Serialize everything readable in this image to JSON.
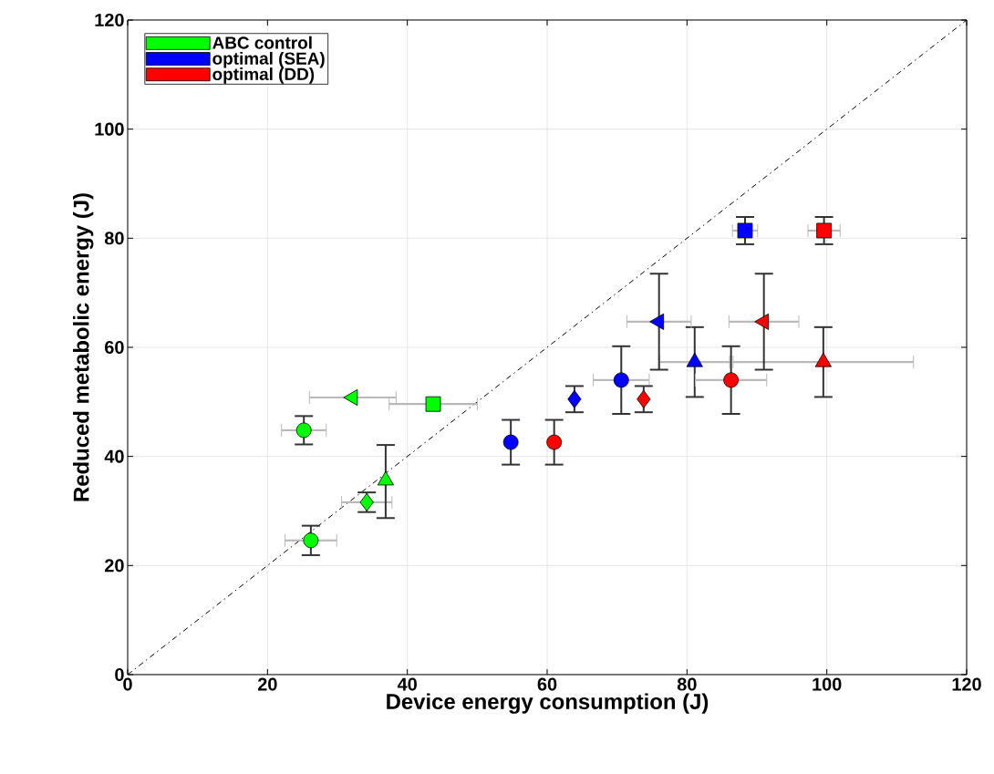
{
  "chart_data": {
    "type": "scatter",
    "xlabel": "Device energy consumption (J)",
    "ylabel": "Reduced metabolic energy (J)",
    "xlim": [
      0,
      120
    ],
    "ylim": [
      0,
      120
    ],
    "xticks": [
      0,
      20,
      40,
      60,
      80,
      100,
      120
    ],
    "yticks": [
      0,
      20,
      40,
      60,
      80,
      100,
      120
    ],
    "grid": true,
    "legend": "top left",
    "series": [
      {
        "name": "ABC control",
        "color": "#00ff00",
        "marker": "circle",
        "x": [
          26.2
        ],
        "values": [
          24.6
        ],
        "errors": [
          2.7
        ],
        "xerrors": [
          3.7
        ]
      },
      {
        "color": "#00ff00",
        "marker": "diamond",
        "x": [
          34.2
        ],
        "values": [
          31.6
        ],
        "errors": [
          1.8
        ],
        "xerrors": [
          3.6
        ]
      },
      {
        "color": "#00ff00",
        "marker": "triangle",
        "x": [
          36.9
        ],
        "values": [
          35.6
        ],
        "errors": [
          [
            28.7,
            42.1
          ]
        ],
        "xerrors": [
          null
        ]
      },
      {
        "color": "#00ff00",
        "marker": "circle",
        "x": [
          25.2
        ],
        "values": [
          44.8
        ],
        "errors": [
          2.6
        ],
        "xerrors": [
          3.2
        ]
      },
      {
        "color": "#00ff00",
        "marker": "triangle left",
        "x": [
          32.2
        ],
        "values": [
          50.8
        ],
        "errors": [
          null
        ],
        "xerrors": [
          6.2
        ]
      },
      {
        "color": "#00ff00",
        "marker": "square",
        "x": [
          43.7
        ],
        "values": [
          49.6
        ],
        "errors": [
          null
        ],
        "xerrors": [
          6.3
        ]
      },
      {
        "name": "optimal (SEA)",
        "color": "#0000ff",
        "marker": "circle",
        "x": [
          54.8
        ],
        "values": [
          42.6
        ],
        "errors": [
          4.1
        ],
        "xerrors": [
          null
        ]
      },
      {
        "color": "#0000ff",
        "marker": "diamond",
        "x": [
          63.9
        ],
        "values": [
          50.5
        ],
        "errors": [
          2.4
        ],
        "xerrors": [
          null
        ]
      },
      {
        "color": "#0000ff",
        "marker": "circle",
        "x": [
          70.6
        ],
        "values": [
          54.0
        ],
        "errors": [
          6.2
        ],
        "xerrors": [
          4.0
        ]
      },
      {
        "color": "#0000ff",
        "marker": "triangle",
        "x": [
          81.1
        ],
        "values": [
          57.3
        ],
        "errors": [
          6.4
        ],
        "xerrors": [
          5.0
        ]
      },
      {
        "color": "#0000ff",
        "marker": "triangle left",
        "x": [
          76.0
        ],
        "values": [
          64.7
        ],
        "errors": [
          8.8
        ],
        "xerrors": [
          4.6
        ]
      },
      {
        "color": "#0000ff",
        "marker": "square",
        "x": [
          88.3
        ],
        "values": [
          81.4
        ],
        "errors": [
          2.5
        ],
        "xerrors": [
          1.8
        ]
      },
      {
        "name": "optimal (DD)",
        "color": "#ff0000",
        "marker": "circle",
        "x": [
          61.0
        ],
        "values": [
          42.6
        ],
        "errors": [
          4.1
        ],
        "xerrors": [
          null
        ]
      },
      {
        "color": "#ff0000",
        "marker": "diamond",
        "x": [
          73.8
        ],
        "values": [
          50.5
        ],
        "errors": [
          2.4
        ],
        "xerrors": [
          null
        ]
      },
      {
        "color": "#ff0000",
        "marker": "circle",
        "x": [
          86.3
        ],
        "values": [
          54.0
        ],
        "errors": [
          6.2
        ],
        "xerrors": [
          5.1
        ]
      },
      {
        "color": "#ff0000",
        "marker": "triangle",
        "x": [
          99.5
        ],
        "values": [
          57.3
        ],
        "errors": [
          6.4
        ],
        "xerrors": [
          12.9
        ]
      },
      {
        "color": "#ff0000",
        "marker": "triangle left",
        "x": [
          91.0
        ],
        "values": [
          64.7
        ],
        "errors": [
          8.8
        ],
        "xerrors": [
          5.0
        ]
      },
      {
        "color": "#ff0000",
        "marker": "square",
        "x": [
          99.6
        ],
        "values": [
          81.4
        ],
        "errors": [
          2.5
        ],
        "xerrors": [
          2.3
        ]
      },
      {
        "type": "line",
        "color": "#000000",
        "line_style": "dash dot",
        "x": [
          0,
          120
        ],
        "values": [
          0,
          120
        ]
      }
    ]
  }
}
